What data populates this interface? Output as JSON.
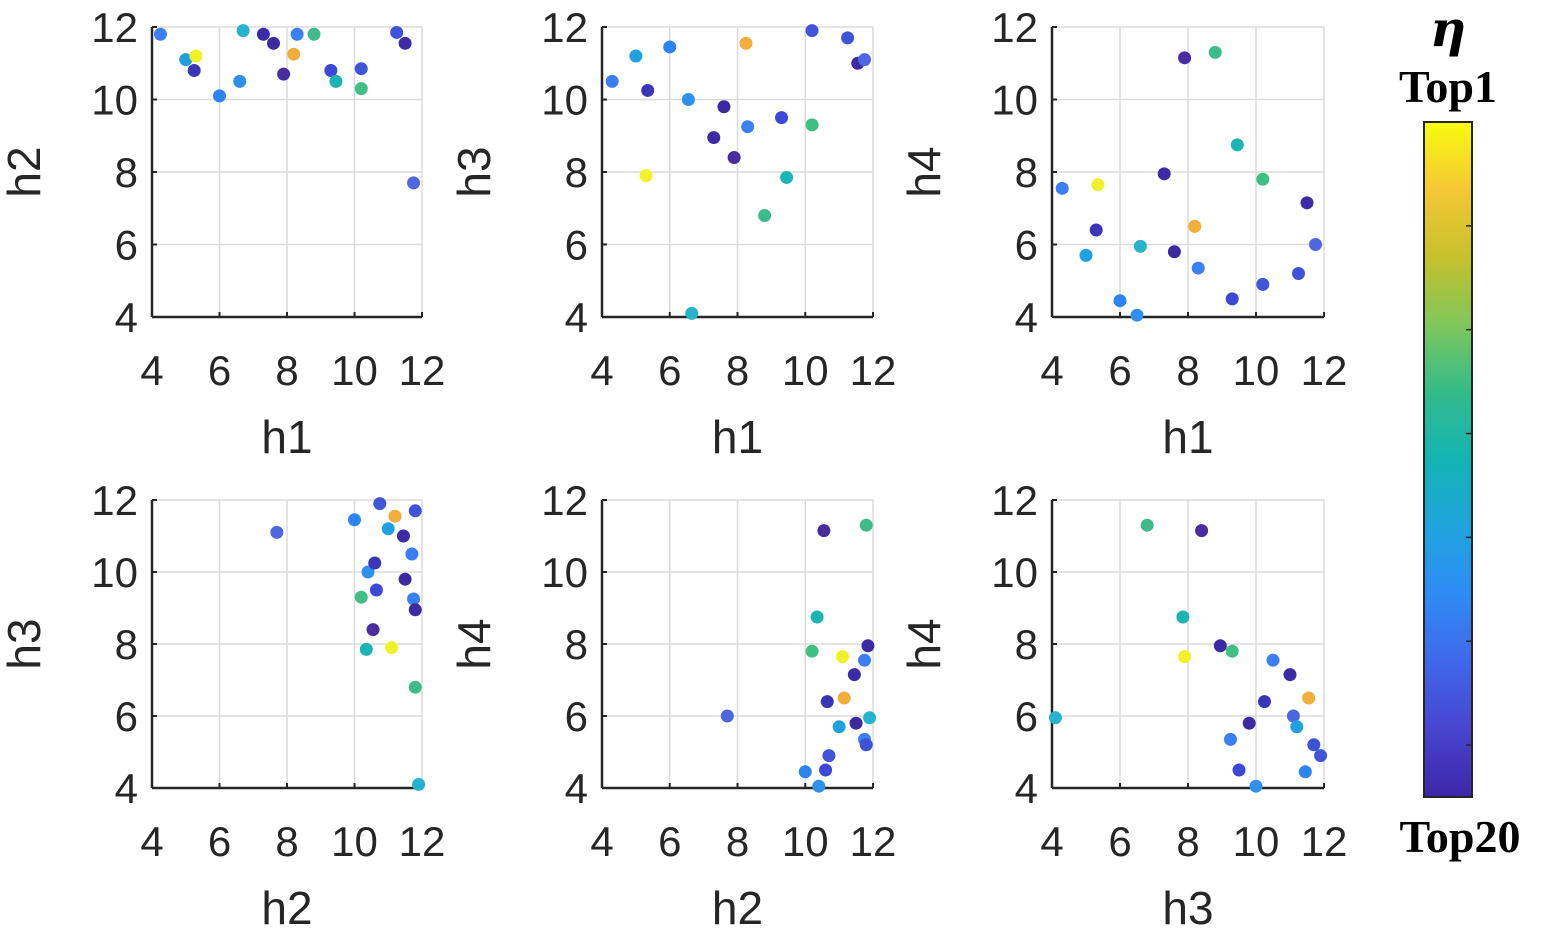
{
  "chart_data": [
    {
      "type": "scatter",
      "xlabel": "h1",
      "ylabel": "h2",
      "xlim": [
        4,
        12
      ],
      "ylim": [
        4,
        12
      ],
      "ticks": [
        4,
        6,
        8,
        10,
        12
      ],
      "grid": true,
      "points": [
        {
          "x": 4.25,
          "y": 11.8,
          "c": "#3b7ef5"
        },
        {
          "x": 5.0,
          "y": 11.1,
          "c": "#1fa0e0"
        },
        {
          "x": 5.3,
          "y": 11.2,
          "c": "#f2f026"
        },
        {
          "x": 5.25,
          "y": 10.8,
          "c": "#3a36b8"
        },
        {
          "x": 6.0,
          "y": 10.1,
          "c": "#2c84f1"
        },
        {
          "x": 6.6,
          "y": 10.5,
          "c": "#3091ea"
        },
        {
          "x": 6.7,
          "y": 11.9,
          "c": "#25b3cd"
        },
        {
          "x": 7.3,
          "y": 11.8,
          "c": "#3d2ba6"
        },
        {
          "x": 7.6,
          "y": 11.55,
          "c": "#3e2aa0"
        },
        {
          "x": 7.9,
          "y": 10.7,
          "c": "#472d9f"
        },
        {
          "x": 8.2,
          "y": 11.25,
          "c": "#f2ae3b"
        },
        {
          "x": 8.3,
          "y": 11.8,
          "c": "#3b80f3"
        },
        {
          "x": 8.8,
          "y": 11.8,
          "c": "#3dbb8a"
        },
        {
          "x": 9.3,
          "y": 10.8,
          "c": "#3e48d8"
        },
        {
          "x": 9.45,
          "y": 10.5,
          "c": "#1cb5b5"
        },
        {
          "x": 10.2,
          "y": 10.3,
          "c": "#3fbf86"
        },
        {
          "x": 10.2,
          "y": 10.85,
          "c": "#4255d6"
        },
        {
          "x": 11.25,
          "y": 11.85,
          "c": "#3f53d8"
        },
        {
          "x": 11.5,
          "y": 11.55,
          "c": "#3d2ba6"
        },
        {
          "x": 11.75,
          "y": 7.7,
          "c": "#4e66e0"
        }
      ]
    },
    {
      "type": "scatter",
      "xlabel": "h1",
      "ylabel": "h3",
      "xlim": [
        4,
        12
      ],
      "ylim": [
        4,
        12
      ],
      "ticks": [
        4,
        6,
        8,
        10,
        12
      ],
      "grid": true,
      "points": [
        {
          "x": 4.3,
          "y": 10.5,
          "c": "#3b7ef5"
        },
        {
          "x": 5.0,
          "y": 11.2,
          "c": "#1fa0e0"
        },
        {
          "x": 5.3,
          "y": 7.9,
          "c": "#f2f026"
        },
        {
          "x": 5.35,
          "y": 10.25,
          "c": "#3a36b8"
        },
        {
          "x": 6.0,
          "y": 11.45,
          "c": "#2c84f1"
        },
        {
          "x": 6.55,
          "y": 10.0,
          "c": "#3091ea"
        },
        {
          "x": 6.65,
          "y": 4.1,
          "c": "#25b3cd"
        },
        {
          "x": 7.3,
          "y": 8.95,
          "c": "#3d2ba6"
        },
        {
          "x": 7.6,
          "y": 9.8,
          "c": "#3e2aa0"
        },
        {
          "x": 7.9,
          "y": 8.4,
          "c": "#472d9f"
        },
        {
          "x": 8.25,
          "y": 11.55,
          "c": "#f2ae3b"
        },
        {
          "x": 8.3,
          "y": 9.25,
          "c": "#3b80f3"
        },
        {
          "x": 8.8,
          "y": 6.8,
          "c": "#3dbb8a"
        },
        {
          "x": 9.3,
          "y": 9.5,
          "c": "#3e48d8"
        },
        {
          "x": 9.45,
          "y": 7.85,
          "c": "#1cb5b5"
        },
        {
          "x": 10.2,
          "y": 9.3,
          "c": "#3fbf86"
        },
        {
          "x": 10.2,
          "y": 11.9,
          "c": "#4255d6"
        },
        {
          "x": 11.25,
          "y": 11.7,
          "c": "#3f53d8"
        },
        {
          "x": 11.55,
          "y": 11.0,
          "c": "#3d2ba6"
        },
        {
          "x": 11.75,
          "y": 11.1,
          "c": "#4e66e0"
        }
      ]
    },
    {
      "type": "scatter",
      "xlabel": "h1",
      "ylabel": "h4",
      "xlim": [
        4,
        12
      ],
      "ylim": [
        4,
        12
      ],
      "ticks": [
        4,
        6,
        8,
        10,
        12
      ],
      "grid": true,
      "points": [
        {
          "x": 4.3,
          "y": 7.55,
          "c": "#3b7ef5"
        },
        {
          "x": 5.0,
          "y": 5.7,
          "c": "#1fa0e0"
        },
        {
          "x": 5.35,
          "y": 7.65,
          "c": "#f2f026"
        },
        {
          "x": 5.3,
          "y": 6.4,
          "c": "#3a36b8"
        },
        {
          "x": 6.0,
          "y": 4.45,
          "c": "#2c84f1"
        },
        {
          "x": 6.5,
          "y": 4.05,
          "c": "#3091ea"
        },
        {
          "x": 6.6,
          "y": 5.95,
          "c": "#25b3cd"
        },
        {
          "x": 7.3,
          "y": 7.95,
          "c": "#3d2ba6"
        },
        {
          "x": 7.6,
          "y": 5.8,
          "c": "#3e2aa0"
        },
        {
          "x": 7.9,
          "y": 11.15,
          "c": "#472d9f"
        },
        {
          "x": 8.2,
          "y": 6.5,
          "c": "#f2ae3b"
        },
        {
          "x": 8.3,
          "y": 5.35,
          "c": "#3b80f3"
        },
        {
          "x": 8.8,
          "y": 11.3,
          "c": "#3dbb8a"
        },
        {
          "x": 9.3,
          "y": 4.5,
          "c": "#3e48d8"
        },
        {
          "x": 9.45,
          "y": 8.75,
          "c": "#1cb5b5"
        },
        {
          "x": 10.2,
          "y": 7.8,
          "c": "#3fbf86"
        },
        {
          "x": 10.2,
          "y": 4.9,
          "c": "#4255d6"
        },
        {
          "x": 11.25,
          "y": 5.2,
          "c": "#3f53d8"
        },
        {
          "x": 11.5,
          "y": 7.15,
          "c": "#3d2ba6"
        },
        {
          "x": 11.75,
          "y": 6.0,
          "c": "#4e66e0"
        }
      ]
    },
    {
      "type": "scatter",
      "xlabel": "h2",
      "ylabel": "h3",
      "xlim": [
        4,
        12
      ],
      "ylim": [
        4,
        12
      ],
      "ticks": [
        4,
        6,
        8,
        10,
        12
      ],
      "grid": true,
      "points": [
        {
          "x": 7.7,
          "y": 11.1,
          "c": "#4e66e0"
        },
        {
          "x": 10.0,
          "y": 11.45,
          "c": "#2c84f1"
        },
        {
          "x": 10.2,
          "y": 9.3,
          "c": "#3fbf86"
        },
        {
          "x": 10.35,
          "y": 7.85,
          "c": "#1cb5b5"
        },
        {
          "x": 10.4,
          "y": 10.0,
          "c": "#3091ea"
        },
        {
          "x": 10.55,
          "y": 8.4,
          "c": "#472d9f"
        },
        {
          "x": 10.6,
          "y": 10.25,
          "c": "#3a36b8"
        },
        {
          "x": 10.65,
          "y": 9.5,
          "c": "#3e48d8"
        },
        {
          "x": 10.75,
          "y": 11.9,
          "c": "#4255d6"
        },
        {
          "x": 11.0,
          "y": 11.2,
          "c": "#1fa0e0"
        },
        {
          "x": 11.1,
          "y": 7.9,
          "c": "#f2f026"
        },
        {
          "x": 11.2,
          "y": 11.55,
          "c": "#f2ae3b"
        },
        {
          "x": 11.45,
          "y": 11.0,
          "c": "#3d2ba6"
        },
        {
          "x": 11.5,
          "y": 9.8,
          "c": "#3e2aa0"
        },
        {
          "x": 11.7,
          "y": 10.5,
          "c": "#3b7ef5"
        },
        {
          "x": 11.75,
          "y": 9.25,
          "c": "#3b80f3"
        },
        {
          "x": 11.8,
          "y": 6.8,
          "c": "#3dbb8a"
        },
        {
          "x": 11.8,
          "y": 11.7,
          "c": "#3f53d8"
        },
        {
          "x": 11.8,
          "y": 8.95,
          "c": "#3d2ba6"
        },
        {
          "x": 11.9,
          "y": 4.1,
          "c": "#25b3cd"
        }
      ]
    },
    {
      "type": "scatter",
      "xlabel": "h2",
      "ylabel": "h4",
      "xlim": [
        4,
        12
      ],
      "ylim": [
        4,
        12
      ],
      "ticks": [
        4,
        6,
        8,
        10,
        12
      ],
      "grid": true,
      "points": [
        {
          "x": 7.7,
          "y": 6.0,
          "c": "#4e66e0"
        },
        {
          "x": 10.0,
          "y": 4.45,
          "c": "#2c84f1"
        },
        {
          "x": 10.2,
          "y": 7.8,
          "c": "#3fbf86"
        },
        {
          "x": 10.35,
          "y": 8.75,
          "c": "#1cb5b5"
        },
        {
          "x": 10.4,
          "y": 4.05,
          "c": "#3091ea"
        },
        {
          "x": 10.55,
          "y": 11.15,
          "c": "#472d9f"
        },
        {
          "x": 10.65,
          "y": 6.4,
          "c": "#3a36b8"
        },
        {
          "x": 10.6,
          "y": 4.5,
          "c": "#3e48d8"
        },
        {
          "x": 10.7,
          "y": 4.9,
          "c": "#4255d6"
        },
        {
          "x": 11.0,
          "y": 5.7,
          "c": "#1fa0e0"
        },
        {
          "x": 11.1,
          "y": 7.65,
          "c": "#f2f026"
        },
        {
          "x": 11.15,
          "y": 6.5,
          "c": "#f2ae3b"
        },
        {
          "x": 11.45,
          "y": 7.15,
          "c": "#3d2ba6"
        },
        {
          "x": 11.5,
          "y": 5.8,
          "c": "#3e2aa0"
        },
        {
          "x": 11.75,
          "y": 7.55,
          "c": "#3b7ef5"
        },
        {
          "x": 11.75,
          "y": 5.35,
          "c": "#3b80f3"
        },
        {
          "x": 11.8,
          "y": 11.3,
          "c": "#3dbb8a"
        },
        {
          "x": 11.8,
          "y": 5.2,
          "c": "#3f53d8"
        },
        {
          "x": 11.85,
          "y": 7.95,
          "c": "#3d2ba6"
        },
        {
          "x": 11.9,
          "y": 5.95,
          "c": "#25b3cd"
        }
      ]
    },
    {
      "type": "scatter",
      "xlabel": "h3",
      "ylabel": "h4",
      "xlim": [
        4,
        12
      ],
      "ylim": [
        4,
        12
      ],
      "ticks": [
        4,
        6,
        8,
        10,
        12
      ],
      "grid": true,
      "points": [
        {
          "x": 4.1,
          "y": 5.95,
          "c": "#25b3cd"
        },
        {
          "x": 6.8,
          "y": 11.3,
          "c": "#3dbb8a"
        },
        {
          "x": 7.85,
          "y": 8.75,
          "c": "#1cb5b5"
        },
        {
          "x": 7.9,
          "y": 7.65,
          "c": "#f2f026"
        },
        {
          "x": 8.4,
          "y": 11.15,
          "c": "#472d9f"
        },
        {
          "x": 8.95,
          "y": 7.95,
          "c": "#3d2ba6"
        },
        {
          "x": 9.25,
          "y": 5.35,
          "c": "#3b80f3"
        },
        {
          "x": 9.3,
          "y": 7.8,
          "c": "#3fbf86"
        },
        {
          "x": 9.5,
          "y": 4.5,
          "c": "#3e48d8"
        },
        {
          "x": 9.8,
          "y": 5.8,
          "c": "#3e2aa0"
        },
        {
          "x": 10.0,
          "y": 4.05,
          "c": "#3091ea"
        },
        {
          "x": 10.25,
          "y": 6.4,
          "c": "#3a36b8"
        },
        {
          "x": 10.5,
          "y": 7.55,
          "c": "#3b7ef5"
        },
        {
          "x": 11.0,
          "y": 7.15,
          "c": "#3d2ba6"
        },
        {
          "x": 11.1,
          "y": 6.0,
          "c": "#4e66e0"
        },
        {
          "x": 11.2,
          "y": 5.7,
          "c": "#1fa0e0"
        },
        {
          "x": 11.45,
          "y": 4.45,
          "c": "#2c84f1"
        },
        {
          "x": 11.55,
          "y": 6.5,
          "c": "#f2ae3b"
        },
        {
          "x": 11.7,
          "y": 5.2,
          "c": "#3f53d8"
        },
        {
          "x": 11.9,
          "y": 4.9,
          "c": "#4255d6"
        }
      ]
    }
  ],
  "colorbar": {
    "symbol": "η",
    "top_label": "Top1",
    "bottom_label": "Top20",
    "colors_top_to_bottom": [
      "#f9fb0e",
      "#f5c835",
      "#c7c12b",
      "#7fc75b",
      "#33bb8a",
      "#13b4b3",
      "#1fa4de",
      "#2f8bf5",
      "#4067ea",
      "#4745d0",
      "#3e26a8"
    ]
  }
}
